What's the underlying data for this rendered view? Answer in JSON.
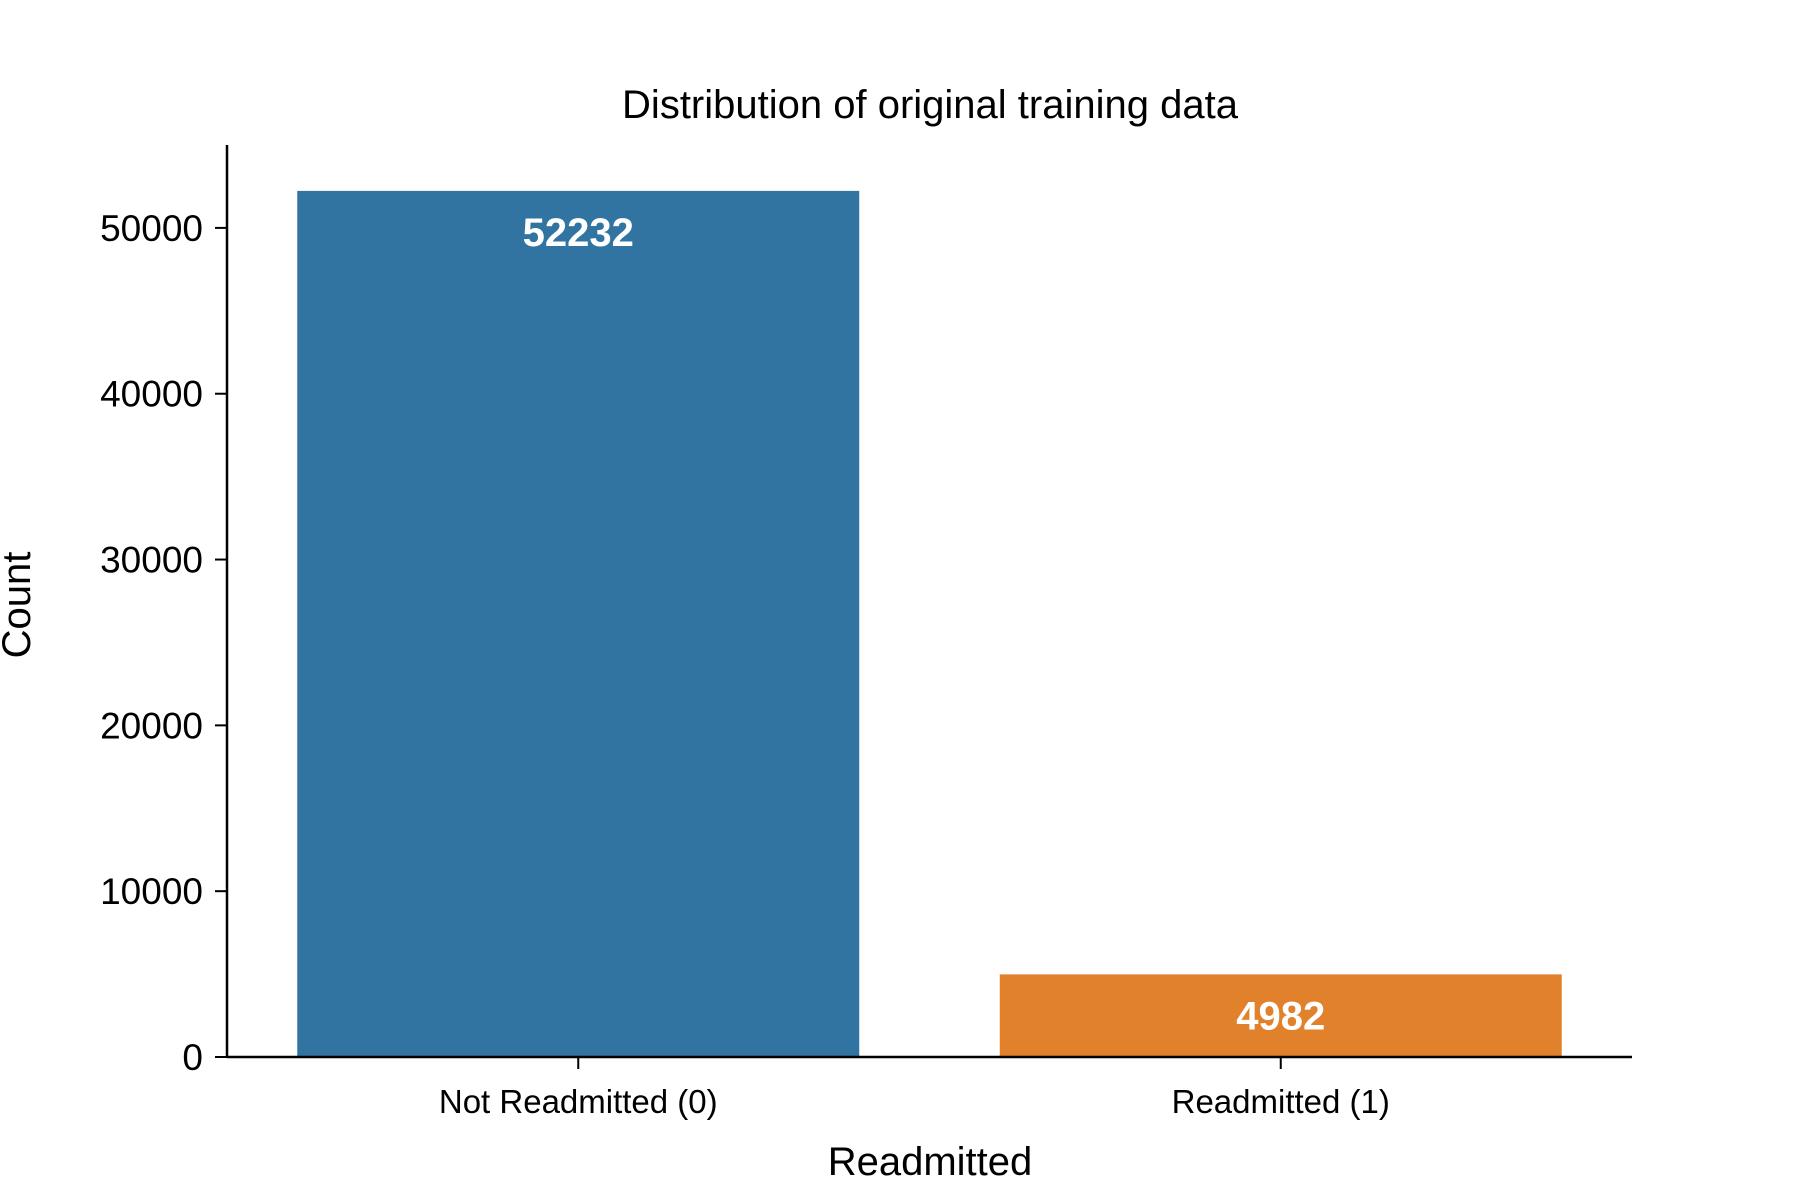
{
  "chart_data": {
    "type": "bar",
    "title": "Distribution of original training data",
    "xlabel": "Readmitted",
    "ylabel": "Count",
    "categories": [
      "Not Readmitted (0)",
      "Readmitted (1)"
    ],
    "values": [
      52232,
      4982
    ],
    "data_labels": [
      "52232",
      "4982"
    ],
    "colors": [
      "#3274a1",
      "#e1812c"
    ],
    "ylim": [
      0,
      55000
    ],
    "yticks": [
      0,
      10000,
      20000,
      30000,
      40000,
      50000
    ],
    "ytick_labels": [
      "0",
      "10000",
      "20000",
      "30000",
      "40000",
      "50000"
    ],
    "grid": false,
    "legend": "none"
  }
}
